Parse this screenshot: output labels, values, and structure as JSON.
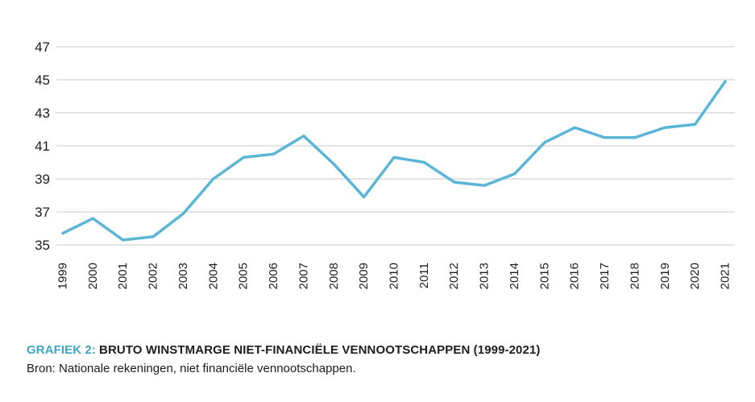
{
  "chart_data": {
    "type": "line",
    "title": "GRAFIEK 2: BRUTO WINSTMARGE NIET-FINANCIËLE VENNOOTSCHAPPEN (1999-2021)",
    "x": [
      "1999",
      "2000",
      "2001",
      "2002",
      "2003",
      "2004",
      "2005",
      "2006",
      "2007",
      "2008",
      "2009",
      "2010",
      "2011",
      "2012",
      "2013",
      "2014",
      "2015",
      "2016",
      "2017",
      "2018",
      "2019",
      "2020",
      "2021"
    ],
    "series": [
      {
        "name": "Bruto winstmarge niet-financiële vennootschappen",
        "values": [
          35.7,
          36.6,
          35.3,
          35.5,
          36.9,
          39.0,
          40.3,
          40.5,
          41.6,
          39.9,
          37.9,
          40.3,
          40.0,
          38.8,
          38.6,
          39.3,
          41.2,
          42.1,
          41.5,
          41.5,
          42.1,
          42.3,
          44.9
        ]
      }
    ],
    "ylim": [
      35,
      47
    ],
    "yticks": [
      35,
      37,
      39,
      41,
      43,
      45,
      47
    ],
    "xlabel": "",
    "ylabel": "",
    "grid": "horizontal",
    "legend": "none",
    "line_color": "#5bb6d6",
    "grid_color": "#c8c8c8"
  },
  "caption": {
    "label": "GRAFIEK 2:",
    "title": "BRUTO WINSTMARGE NIET-FINANCIËLE VENNOOTSCHAPPEN (1999-2021)",
    "source": "Bron: Nationale rekeningen, niet financiële vennootschappen."
  },
  "colors": {
    "accent": "#3fa5c7",
    "line": "#5bb6d6",
    "grid": "#c8c8c8",
    "text": "#1d1d1b"
  }
}
